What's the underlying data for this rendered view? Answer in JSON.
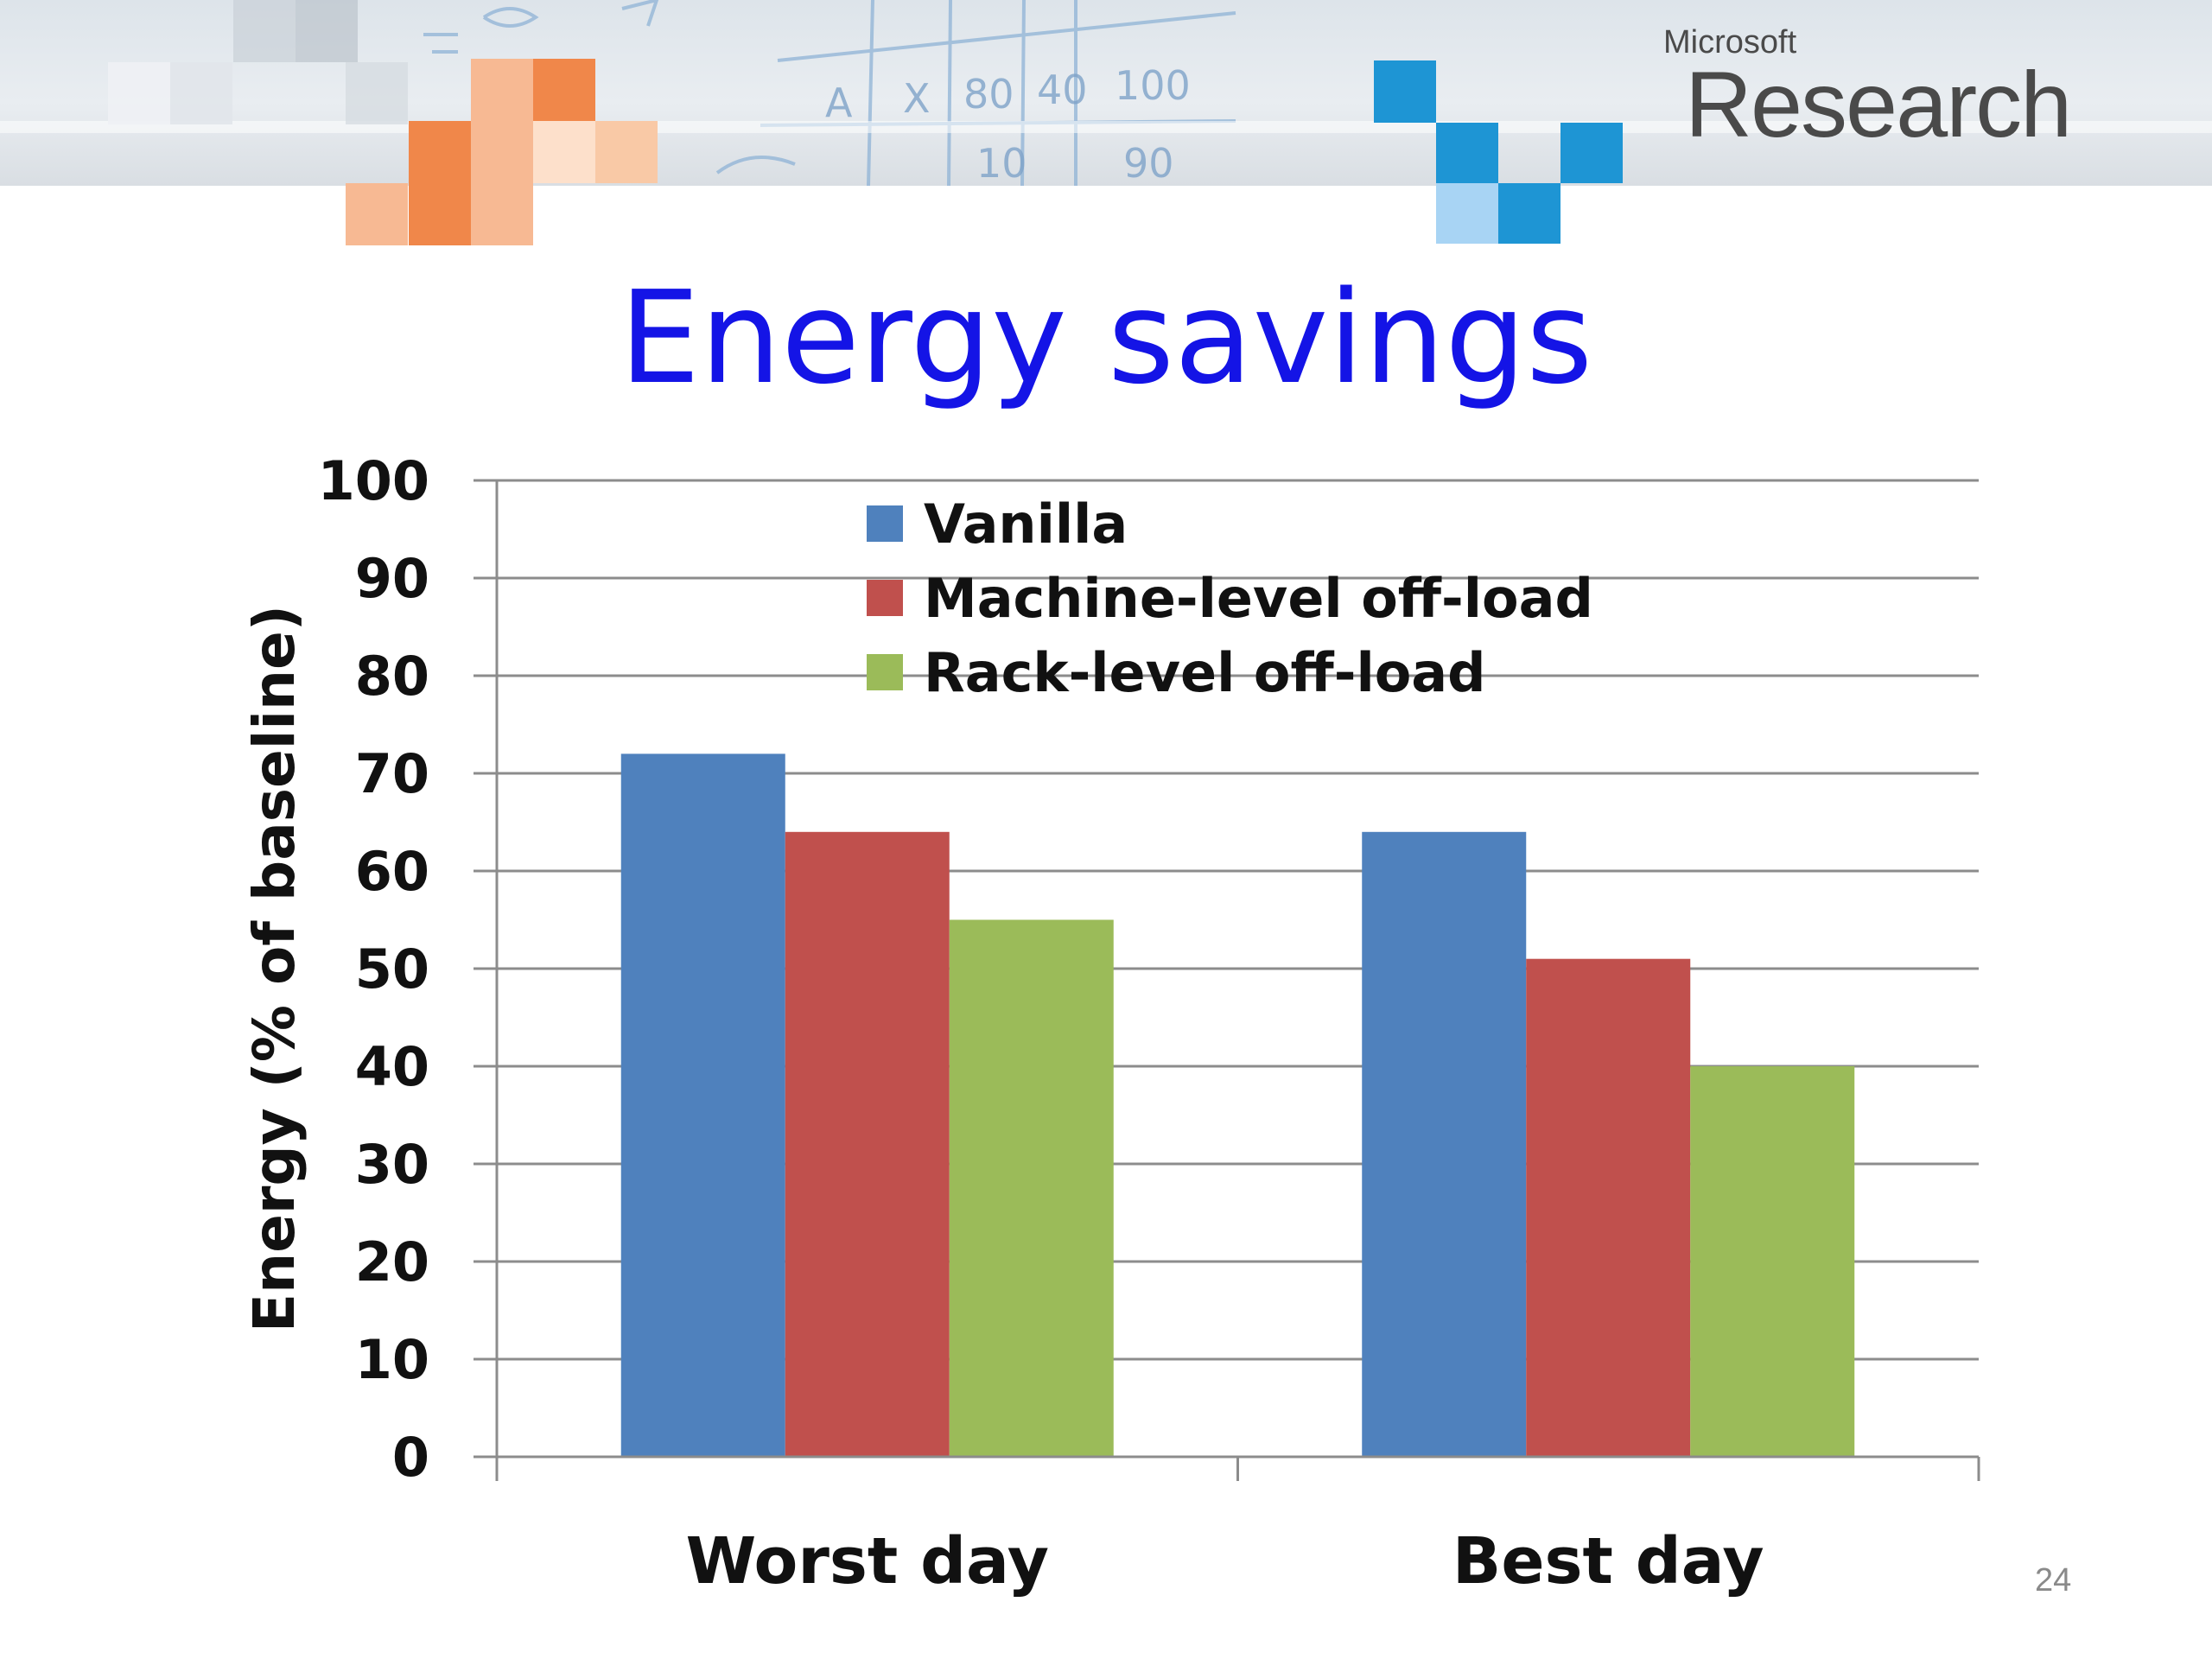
{
  "header": {
    "logo_small": "Microsoft",
    "logo_large": "Research"
  },
  "slide": {
    "title": "Energy savings",
    "page_number": "24"
  },
  "colors": {
    "title": "#1414e6",
    "vanilla": "#4f81bd",
    "machine": "#c0504d",
    "rack": "#9bbb59",
    "orange_tiles": [
      "#f0874a",
      "#f7b993",
      "#fde0cb"
    ],
    "blue_tiles": [
      "#1e95d4",
      "#a8d4f4"
    ]
  },
  "chart_data": {
    "type": "bar",
    "title": "Energy savings",
    "categories": [
      "Worst day",
      "Best day"
    ],
    "series": [
      {
        "name": "Vanilla",
        "values": [
          72,
          64
        ],
        "color": "#4f81bd"
      },
      {
        "name": "Machine-level off-load",
        "values": [
          64,
          51
        ],
        "color": "#c0504d"
      },
      {
        "name": "Rack-level off-load",
        "values": [
          55,
          40
        ],
        "color": "#9bbb59"
      }
    ],
    "xlabel": "",
    "ylabel": "Energy (% of baseline)",
    "ylim": [
      0,
      100
    ],
    "yticks": [
      "0",
      "10",
      "20",
      "30",
      "40",
      "50",
      "60",
      "70",
      "80",
      "90",
      "100"
    ],
    "grid": true,
    "legend": "top-center"
  }
}
